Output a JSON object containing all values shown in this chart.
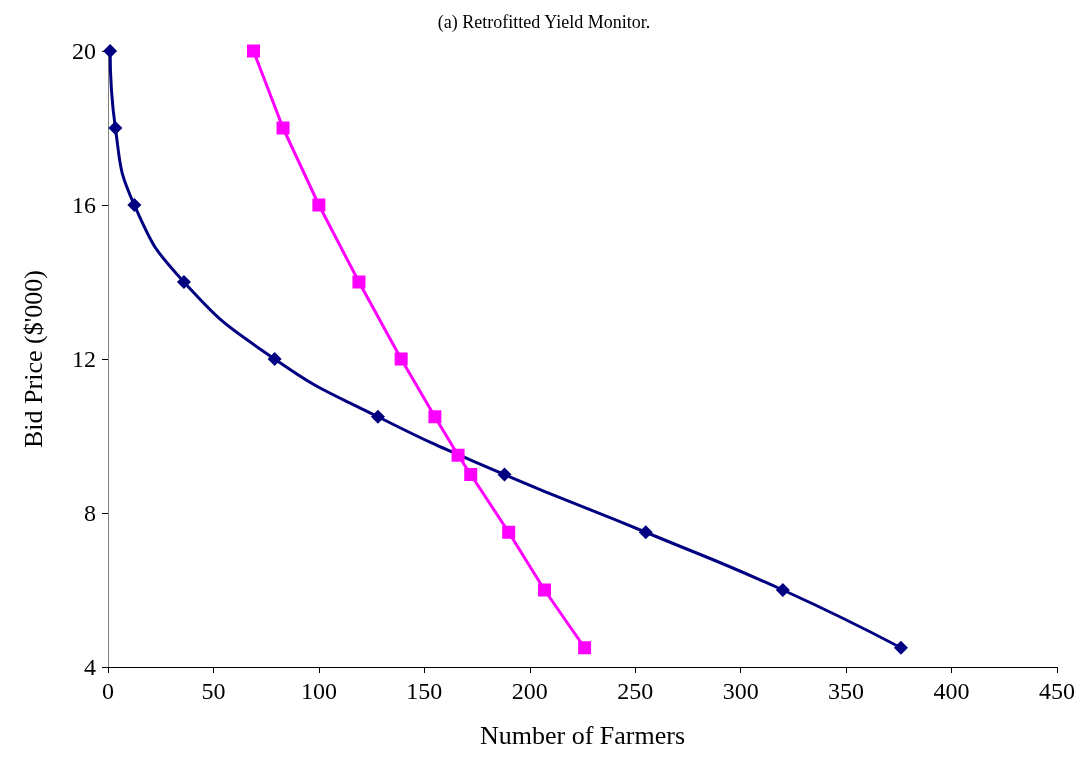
{
  "chart_data": {
    "type": "line",
    "title": "(a) Retrofitted Yield Monitor.",
    "xlabel": "Number of Farmers",
    "ylabel": "Bid Price ($'000)",
    "series": [
      {
        "color": "#000080",
        "marker": "diamond",
        "x": [
          1,
          3.5,
          12.5,
          36,
          79,
          128,
          188,
          255,
          320,
          376
        ],
        "values": [
          20,
          18,
          16,
          14,
          12,
          10.5,
          9,
          7.5,
          6,
          4.5
        ]
      },
      {
        "color": "#ff00ff",
        "marker": "square",
        "x": [
          69,
          83,
          100,
          119,
          139,
          155,
          166,
          172,
          190,
          207,
          226
        ],
        "values": [
          20,
          18,
          16,
          14,
          12,
          10.5,
          9.5,
          9,
          7.5,
          6,
          4.5
        ]
      }
    ],
    "xlim": [
      0,
      450
    ],
    "xticks": [
      0,
      50,
      100,
      150,
      200,
      250,
      300,
      350,
      400,
      450
    ],
    "ylim": [
      4,
      20
    ],
    "yticks": [
      4,
      8,
      12,
      16,
      20
    ],
    "grid": false
  }
}
